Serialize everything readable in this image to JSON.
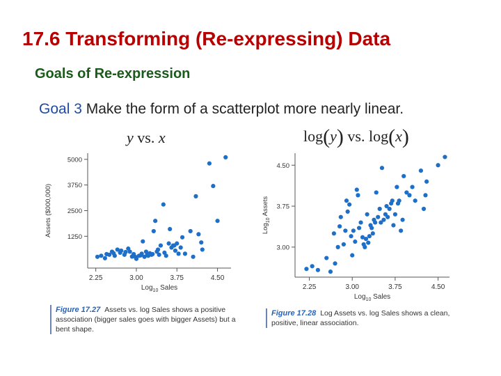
{
  "slide": {
    "title": "17.6 Transforming (Re-expressing) Data",
    "subtitle": "Goals of Re-expression",
    "goal_number": "Goal 3",
    "goal_text": "Make the form of a scatterplot more nearly linear."
  },
  "math_labels": {
    "left": {
      "y": "y",
      "vs": "vs.",
      "x": "x"
    },
    "right": {
      "log1": "log",
      "y": "y",
      "vs": "vs.",
      "log2": "log",
      "x": "x"
    }
  },
  "captions": {
    "left": {
      "figure": "Figure 17.27",
      "text": "Assets vs. log Sales shows a positive association (bigger sales goes with bigger Assets) but a bent shape."
    },
    "right": {
      "figure": "Figure 17.28",
      "text": "Log Assets vs. log Sales shows a clean, positive, linear association."
    }
  },
  "colors": {
    "title": "#b80000",
    "subtitle": "#1a5a1a",
    "goal_number": "#1f4aa8",
    "points": "#1e6fc8",
    "figure_label": "#2a63b5"
  },
  "chart_data": [
    {
      "type": "scatter",
      "xlabel": "Log10 Sales",
      "ylabel": "Assets ($000,000)",
      "xticks": [
        "2.25",
        "3.00",
        "3.75",
        "4.50"
      ],
      "yticks": [
        "1250",
        "2500",
        "3750",
        "5000"
      ],
      "xlim": [
        2.1,
        4.75
      ],
      "ylim": [
        -300,
        5300
      ],
      "grid": false,
      "points": [
        [
          2.28,
          250
        ],
        [
          2.35,
          300
        ],
        [
          2.42,
          180
        ],
        [
          2.45,
          380
        ],
        [
          2.5,
          350
        ],
        [
          2.55,
          500
        ],
        [
          2.58,
          420
        ],
        [
          2.6,
          300
        ],
        [
          2.65,
          600
        ],
        [
          2.7,
          450
        ],
        [
          2.72,
          550
        ],
        [
          2.78,
          350
        ],
        [
          2.8,
          480
        ],
        [
          2.85,
          650
        ],
        [
          2.88,
          500
        ],
        [
          2.92,
          260
        ],
        [
          2.95,
          380
        ],
        [
          2.98,
          250
        ],
        [
          3.0,
          150
        ],
        [
          3.05,
          300
        ],
        [
          3.08,
          320
        ],
        [
          3.1,
          400
        ],
        [
          3.12,
          1000
        ],
        [
          3.15,
          250
        ],
        [
          3.18,
          500
        ],
        [
          3.2,
          350
        ],
        [
          3.22,
          300
        ],
        [
          3.25,
          420
        ],
        [
          3.28,
          350
        ],
        [
          3.3,
          380
        ],
        [
          3.32,
          1500
        ],
        [
          3.35,
          2000
        ],
        [
          3.38,
          500
        ],
        [
          3.4,
          600
        ],
        [
          3.42,
          350
        ],
        [
          3.45,
          800
        ],
        [
          3.5,
          2800
        ],
        [
          3.52,
          450
        ],
        [
          3.55,
          300
        ],
        [
          3.6,
          900
        ],
        [
          3.62,
          1600
        ],
        [
          3.65,
          700
        ],
        [
          3.68,
          800
        ],
        [
          3.7,
          800
        ],
        [
          3.72,
          550
        ],
        [
          3.75,
          900
        ],
        [
          3.78,
          400
        ],
        [
          3.82,
          700
        ],
        [
          3.85,
          1200
        ],
        [
          3.9,
          400
        ],
        [
          4.0,
          1500
        ],
        [
          4.05,
          250
        ],
        [
          4.1,
          3200
        ],
        [
          4.15,
          1350
        ],
        [
          4.2,
          950
        ],
        [
          4.22,
          600
        ],
        [
          4.35,
          4800
        ],
        [
          4.42,
          3700
        ],
        [
          4.5,
          2000
        ],
        [
          4.65,
          5100
        ]
      ]
    },
    {
      "type": "scatter",
      "xlabel": "Log10 Sales",
      "ylabel": "Log10 Assets",
      "xticks": [
        "2.25",
        "3.00",
        "3.75",
        "4.50"
      ],
      "yticks": [
        "3.00",
        "3.75",
        "4.50"
      ],
      "xlim": [
        2.0,
        4.7
      ],
      "ylim": [
        2.45,
        4.72
      ],
      "grid": false,
      "points": [
        [
          2.2,
          2.6
        ],
        [
          2.3,
          2.65
        ],
        [
          2.4,
          2.58
        ],
        [
          2.55,
          2.8
        ],
        [
          2.62,
          2.55
        ],
        [
          2.68,
          3.25
        ],
        [
          2.7,
          2.7
        ],
        [
          2.75,
          3.0
        ],
        [
          2.78,
          3.38
        ],
        [
          2.8,
          3.55
        ],
        [
          2.85,
          3.05
        ],
        [
          2.88,
          3.3
        ],
        [
          2.9,
          3.85
        ],
        [
          2.92,
          3.65
        ],
        [
          2.95,
          3.78
        ],
        [
          2.98,
          3.2
        ],
        [
          3.0,
          2.85
        ],
        [
          3.02,
          3.3
        ],
        [
          3.05,
          3.1
        ],
        [
          3.08,
          4.05
        ],
        [
          3.1,
          3.95
        ],
        [
          3.12,
          3.35
        ],
        [
          3.15,
          3.45
        ],
        [
          3.18,
          3.18
        ],
        [
          3.2,
          3.05
        ],
        [
          3.22,
          3.0
        ],
        [
          3.24,
          3.15
        ],
        [
          3.26,
          3.6
        ],
        [
          3.28,
          3.08
        ],
        [
          3.3,
          3.2
        ],
        [
          3.32,
          3.4
        ],
        [
          3.34,
          3.35
        ],
        [
          3.36,
          3.25
        ],
        [
          3.38,
          3.5
        ],
        [
          3.4,
          3.45
        ],
        [
          3.42,
          4.0
        ],
        [
          3.45,
          3.55
        ],
        [
          3.48,
          3.7
        ],
        [
          3.5,
          3.45
        ],
        [
          3.52,
          4.45
        ],
        [
          3.55,
          3.5
        ],
        [
          3.58,
          3.6
        ],
        [
          3.6,
          3.75
        ],
        [
          3.62,
          3.55
        ],
        [
          3.65,
          3.7
        ],
        [
          3.68,
          3.8
        ],
        [
          3.7,
          3.85
        ],
        [
          3.72,
          3.4
        ],
        [
          3.75,
          3.6
        ],
        [
          3.78,
          4.1
        ],
        [
          3.8,
          3.8
        ],
        [
          3.82,
          3.85
        ],
        [
          3.85,
          3.3
        ],
        [
          3.88,
          3.5
        ],
        [
          3.9,
          4.3
        ],
        [
          3.95,
          4.0
        ],
        [
          4.0,
          3.95
        ],
        [
          4.05,
          4.1
        ],
        [
          4.1,
          3.85
        ],
        [
          4.2,
          4.4
        ],
        [
          4.25,
          3.7
        ],
        [
          4.28,
          3.95
        ],
        [
          4.3,
          4.2
        ],
        [
          4.5,
          4.5
        ],
        [
          4.62,
          4.65
        ]
      ]
    }
  ]
}
